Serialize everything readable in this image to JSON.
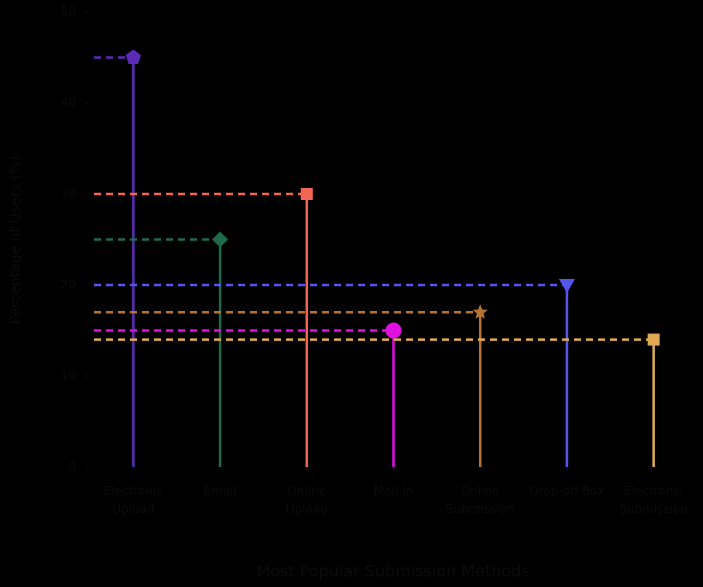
{
  "chart_data": {
    "type": "lollipop",
    "x_label": "Most Popular Submission Methods",
    "y_label": "Percentage of Users (%)",
    "categories": [
      [
        "Electronic",
        "Upload"
      ],
      [
        "Email"
      ],
      [
        "Online",
        "Upload"
      ],
      [
        "Mail-in"
      ],
      [
        "Online",
        "Submission"
      ],
      [
        "Drop-off Box"
      ],
      [
        "Electronic",
        "Submission"
      ]
    ],
    "values": [
      45,
      25,
      30,
      15,
      17,
      20,
      14
    ],
    "colors": [
      "#5b2bb5",
      "#1e6b4a",
      "#f26552",
      "#e010e0",
      "#b87333",
      "#5555ee",
      "#e0aa55"
    ],
    "markers": [
      "pentagon",
      "diamond",
      "square",
      "circle",
      "star",
      "triangle-down",
      "square"
    ],
    "ylim": [
      0,
      50
    ],
    "yticks": [
      0,
      10,
      20,
      30,
      40,
      50
    ]
  }
}
